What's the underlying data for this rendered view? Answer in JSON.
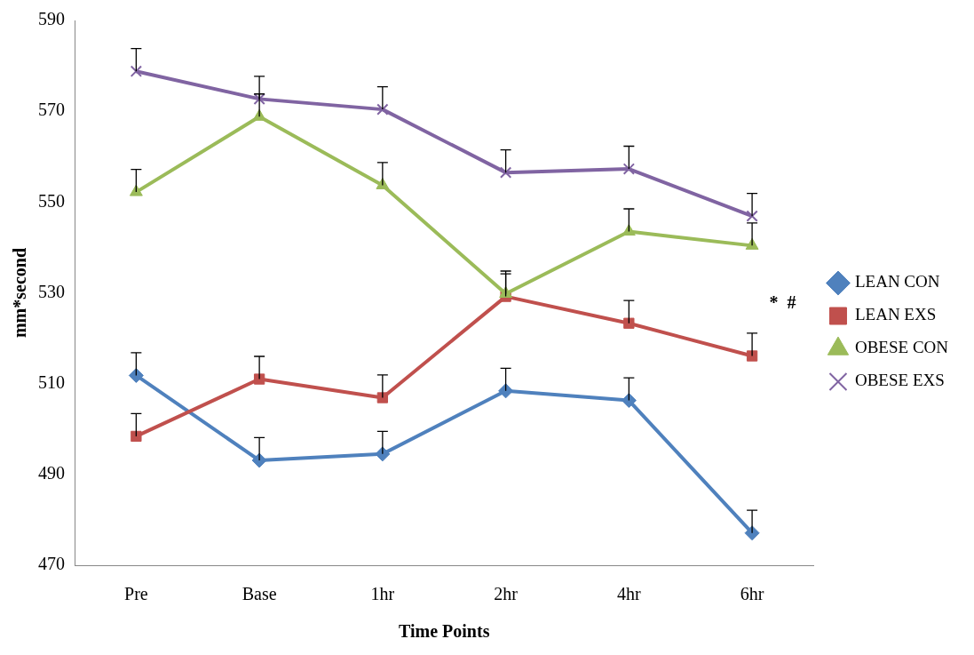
{
  "chart_data": {
    "type": "line",
    "xlabel": "Time Points",
    "ylabel": "mm*second",
    "categories": [
      "Pre",
      "Base",
      "1hr",
      "2hr",
      "4hr",
      "6hr"
    ],
    "series": [
      {
        "name": "LEAN CON",
        "color": "#4f81bd",
        "marker": "diamond",
        "values": [
          511.8,
          493.1,
          494.5,
          508.4,
          506.3,
          477.1
        ],
        "errors": [
          [
            511.8,
            516.8
          ],
          [
            493.1,
            498.1
          ],
          [
            494.5,
            499.5
          ],
          [
            508.4,
            513.4
          ],
          [
            506.3,
            511.3
          ],
          [
            477.1,
            482.1
          ]
        ]
      },
      {
        "name": "LEAN EXS",
        "color": "#c0504d",
        "marker": "square",
        "values": [
          498.4,
          511.0,
          506.9,
          529.2,
          523.3,
          516.1
        ],
        "errors": [
          [
            498.4,
            503.4
          ],
          [
            511.0,
            516.0
          ],
          [
            506.9,
            511.9
          ],
          [
            529.2,
            534.2
          ],
          [
            523.3,
            528.3
          ],
          [
            516.1,
            521.1
          ]
        ]
      },
      {
        "name": "OBESE CON",
        "color": "#9bbb59",
        "marker": "triangle",
        "values": [
          552.2,
          568.8,
          553.7,
          529.8,
          543.5,
          540.4
        ],
        "errors": [
          [
            552.2,
            557.2
          ],
          [
            568.8,
            573.8
          ],
          [
            553.7,
            558.7
          ],
          [
            529.8,
            534.8
          ],
          [
            543.5,
            548.5
          ],
          [
            540.4,
            545.4
          ]
        ]
      },
      {
        "name": "OBESE EXS",
        "color": "#8064a2",
        "marker": "cross",
        "values": [
          578.8,
          572.7,
          570.4,
          556.5,
          557.3,
          546.9
        ],
        "errors": [
          [
            578.8,
            583.8
          ],
          [
            572.7,
            577.7
          ],
          [
            570.4,
            575.4
          ],
          [
            556.5,
            561.5
          ],
          [
            557.3,
            562.3
          ],
          [
            546.9,
            551.9
          ]
        ]
      }
    ],
    "ylim": [
      470,
      590
    ],
    "yticks": [
      470,
      490,
      510,
      530,
      550,
      570,
      590
    ],
    "grid": false,
    "legend": "right",
    "line_style": "solid",
    "annotations": [
      "*  #"
    ]
  }
}
